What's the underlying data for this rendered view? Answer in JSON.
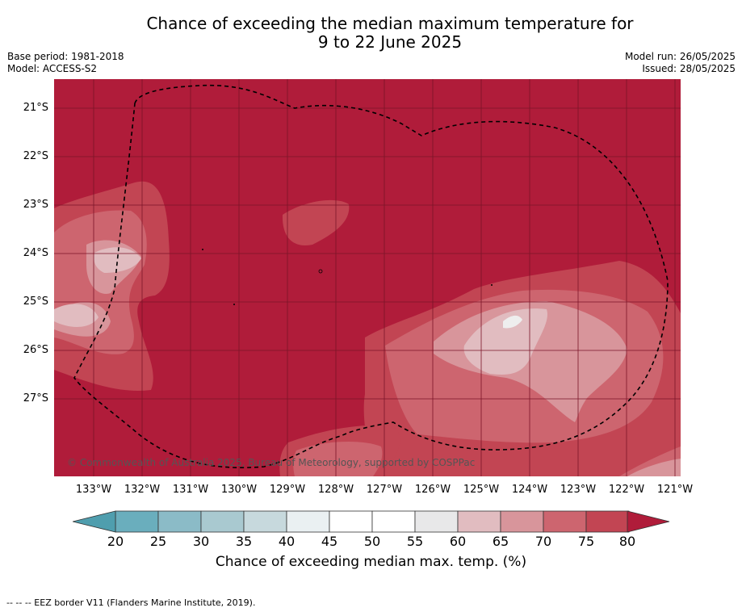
{
  "title": {
    "line1": "Chance of exceeding the median maximum temperature for",
    "line2": "9 to 22 June 2025"
  },
  "meta_left": {
    "base_period": "Base period: 1981-2018",
    "model": "Model: ACCESS-S2"
  },
  "meta_right": {
    "model_run": "Model run: 26/05/2025",
    "issued": "Issued: 28/05/2025"
  },
  "map": {
    "latitude_labels": [
      "21°S",
      "22°S",
      "23°S",
      "24°S",
      "25°S",
      "26°S",
      "27°S"
    ],
    "longitude_labels": [
      "133°W",
      "132°W",
      "131°W",
      "130°W",
      "129°W",
      "128°W",
      "127°W",
      "126°W",
      "125°W",
      "124°W",
      "123°W",
      "122°W",
      "121°W"
    ],
    "copyright": "© Commonwealth of Australia 2025, Bureau of Meteorology, supported by COSPPac",
    "colors": {
      "c80": "#b01c3a",
      "c75": "#c24553",
      "c70": "#cd656f",
      "c65": "#d8959b",
      "c60": "#e1bcc0"
    }
  },
  "colorbar": {
    "ticks": [
      "20",
      "25",
      "30",
      "35",
      "40",
      "45",
      "50",
      "55",
      "60",
      "65",
      "70",
      "75",
      "80"
    ],
    "colors": [
      "#6aaebd",
      "#8bbbc7",
      "#a9c9d0",
      "#c7d9dd",
      "#eaf0f2",
      "#ffffff",
      "#ffffff",
      "#e8e8e9",
      "#e1bcc0",
      "#d8959b",
      "#cd656f",
      "#c24553"
    ],
    "low_color": "#4f9eae",
    "high_color": "#b01c3a",
    "label": "Chance of exceeding median max. temp. (%)"
  },
  "footnote": "-- -- -- EEZ border V11 (Flanders Marine Institute, 2019)."
}
